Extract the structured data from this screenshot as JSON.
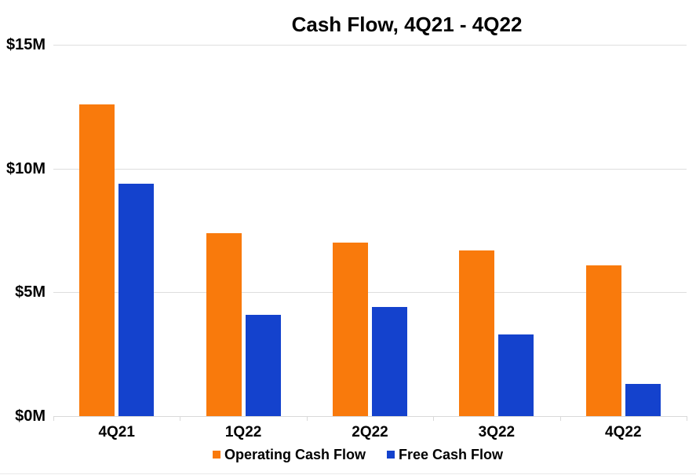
{
  "chart_data": {
    "type": "bar",
    "title": "Cash Flow, 4Q21 - 4Q22",
    "categories": [
      "4Q21",
      "1Q22",
      "2Q22",
      "3Q22",
      "4Q22"
    ],
    "series": [
      {
        "name": "Operating Cash Flow",
        "color": "#F97A0C",
        "values": [
          12.6,
          7.4,
          7.0,
          6.7,
          6.1
        ]
      },
      {
        "name": "Free Cash Flow",
        "color": "#1442CD",
        "values": [
          9.4,
          4.1,
          4.4,
          3.3,
          1.3
        ]
      }
    ],
    "unit": "millions USD",
    "ylim": [
      0,
      15
    ],
    "y_ticks": [
      {
        "value": 0,
        "label": "$0M"
      },
      {
        "value": 5,
        "label": "$5M"
      },
      {
        "value": 10,
        "label": "$10M"
      },
      {
        "value": 15,
        "label": "$15M"
      }
    ],
    "grid": true,
    "legend_position": "bottom",
    "colors": {
      "gridline": "#DEDEDE",
      "axis": "#D9D9D9",
      "text": "#000000",
      "background": "#FFFFFF"
    }
  }
}
